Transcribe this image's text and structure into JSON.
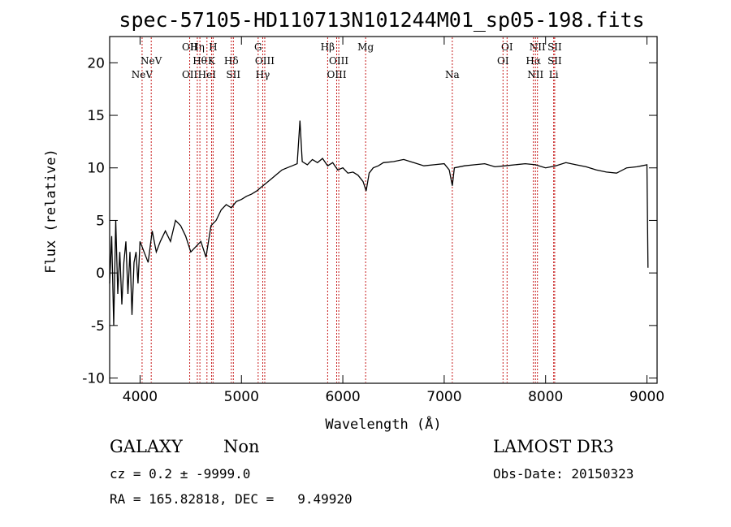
{
  "chart_data": {
    "type": "line",
    "title": "spec-57105-HD110713N101244M01_sp05-198.fits",
    "xlabel": "Wavelength (Å)",
    "ylabel": "Flux (relative)",
    "xlim": [
      3700,
      9100
    ],
    "ylim": [
      -10.5,
      22.5
    ],
    "xticks": [
      4000,
      5000,
      6000,
      7000,
      8000,
      9000
    ],
    "yticks": [
      -10,
      -5,
      0,
      5,
      10,
      15,
      20
    ],
    "series": [
      {
        "name": "flux",
        "x": [
          3700,
          3720,
          3740,
          3760,
          3780,
          3800,
          3820,
          3840,
          3860,
          3880,
          3900,
          3920,
          3940,
          3960,
          3980,
          4000,
          4040,
          4080,
          4120,
          4160,
          4200,
          4250,
          4300,
          4350,
          4400,
          4450,
          4500,
          4550,
          4600,
          4650,
          4700,
          4750,
          4800,
          4850,
          4900,
          4950,
          5000,
          5050,
          5100,
          5150,
          5200,
          5250,
          5300,
          5350,
          5400,
          5450,
          5500,
          5550,
          5577,
          5600,
          5650,
          5700,
          5750,
          5800,
          5850,
          5900,
          5950,
          6000,
          6050,
          6100,
          6150,
          6200,
          6230,
          6260,
          6300,
          6350,
          6400,
          6500,
          6600,
          6700,
          6800,
          6900,
          7000,
          7050,
          7080,
          7100,
          7200,
          7300,
          7400,
          7500,
          7600,
          7700,
          7800,
          7900,
          8000,
          8100,
          8200,
          8300,
          8400,
          8500,
          8600,
          8700,
          8800,
          8900,
          8950,
          9000,
          9010
        ],
        "values": [
          -1,
          3.5,
          -5,
          5,
          -2,
          2,
          -3,
          1,
          3,
          -2,
          2,
          -4,
          1,
          2,
          -1,
          3,
          2,
          1,
          4,
          2,
          3,
          4,
          3,
          5,
          4.5,
          3.5,
          2,
          2.5,
          3,
          1.5,
          4.5,
          5,
          6,
          6.5,
          6.2,
          6.8,
          7,
          7.3,
          7.5,
          7.8,
          8.2,
          8.6,
          9,
          9.4,
          9.8,
          10,
          10.2,
          10.4,
          14.5,
          10.6,
          10.3,
          10.8,
          10.5,
          10.9,
          10.2,
          10.5,
          9.8,
          10,
          9.5,
          9.6,
          9.3,
          8.7,
          7.8,
          9.5,
          10,
          10.2,
          10.5,
          10.6,
          10.8,
          10.5,
          10.2,
          10.3,
          10.4,
          9.8,
          8.3,
          10,
          10.2,
          10.3,
          10.4,
          10.1,
          10.2,
          10.3,
          10.4,
          10.3,
          10,
          10.2,
          10.5,
          10.3,
          10.1,
          9.8,
          9.6,
          9.5,
          10,
          10.1,
          10.2,
          10.3,
          0.5
        ]
      }
    ],
    "emission_lines": [
      {
        "name": "NeV",
        "x": 4020,
        "row": 3
      },
      {
        "name": "NeV",
        "x": 4110,
        "row": 2
      },
      {
        "name": "OII",
        "x": 4490,
        "row": 1
      },
      {
        "name": "OII",
        "x": 4490,
        "row": 3
      },
      {
        "name": "Hη",
        "x": 4565,
        "row": 1
      },
      {
        "name": "Hθ",
        "x": 4590,
        "row": 2
      },
      {
        "name": "HeI",
        "x": 4660,
        "row": 3
      },
      {
        "name": "H",
        "x": 4720,
        "row": 1
      },
      {
        "name": "K",
        "x": 4705,
        "row": 2
      },
      {
        "name": "Hδ",
        "x": 4900,
        "row": 2
      },
      {
        "name": "SII",
        "x": 4920,
        "row": 3
      },
      {
        "name": "G",
        "x": 5165,
        "row": 1
      },
      {
        "name": "OIII",
        "x": 5230,
        "row": 2
      },
      {
        "name": "Hγ",
        "x": 5210,
        "row": 3
      },
      {
        "name": "Hβ",
        "x": 5850,
        "row": 1
      },
      {
        "name": "OIII",
        "x": 5960,
        "row": 2
      },
      {
        "name": "OIII",
        "x": 5940,
        "row": 3
      },
      {
        "name": "Mg",
        "x": 6225,
        "row": 1
      },
      {
        "name": "Na",
        "x": 7080,
        "row": 3
      },
      {
        "name": "OI",
        "x": 7620,
        "row": 1
      },
      {
        "name": "OI",
        "x": 7580,
        "row": 2
      },
      {
        "name": "NII",
        "x": 7920,
        "row": 1
      },
      {
        "name": "Hα",
        "x": 7880,
        "row": 2
      },
      {
        "name": "NII",
        "x": 7900,
        "row": 3
      },
      {
        "name": "SII",
        "x": 8090,
        "row": 1
      },
      {
        "name": "SII",
        "x": 8090,
        "row": 2
      },
      {
        "name": "Li",
        "x": 8080,
        "row": 3
      }
    ]
  },
  "info": {
    "class": "GALAXY",
    "subclass": "Non",
    "survey": "LAMOST DR3",
    "cz": "cz = 0.2 ± -9999.0",
    "obs_date": "Obs-Date: 20150323",
    "radec": "RA = 165.82818, DEC =   9.49920"
  }
}
